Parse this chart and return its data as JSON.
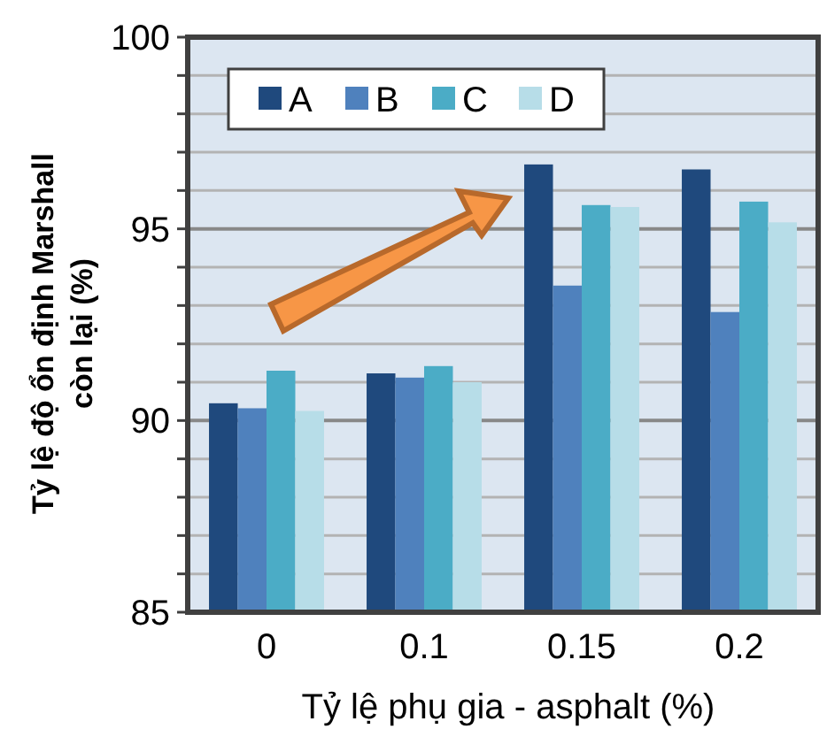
{
  "chart_data": {
    "type": "bar",
    "xlabel": "Tỷ lệ phụ gia - asphalt  (%)",
    "ylabel": "Tỷ lệ độ ổn định Marshall\ncòn lại (%)",
    "categories": [
      "0",
      "0.1",
      "0.15",
      "0.2"
    ],
    "series": [
      {
        "name": "A",
        "color": "#1f497d",
        "values": [
          90.45,
          91.23,
          96.68,
          96.55
        ]
      },
      {
        "name": "B",
        "color": "#4f81bd",
        "values": [
          90.32,
          91.12,
          93.52,
          92.83
        ]
      },
      {
        "name": "C",
        "color": "#4bacc6",
        "values": [
          91.3,
          91.42,
          95.62,
          95.71
        ]
      },
      {
        "name": "D",
        "color": "#b7dde8",
        "values": [
          90.25,
          91.0,
          95.57,
          95.17
        ]
      }
    ],
    "ylim": [
      85,
      100
    ],
    "yticks": [
      85,
      {
        "value": 86,
        "label": null
      },
      {
        "value": 87,
        "label": null
      },
      {
        "value": 88,
        "label": null
      },
      {
        "value": 89,
        "label": null
      },
      90,
      {
        "value": 91,
        "label": null
      },
      {
        "value": 92,
        "label": null
      },
      {
        "value": 93,
        "label": null
      },
      {
        "value": 94,
        "label": null
      },
      95,
      {
        "value": 96,
        "label": null
      },
      {
        "value": 97,
        "label": null
      },
      {
        "value": 98,
        "label": null
      },
      {
        "value": 99,
        "label": null
      },
      100
    ],
    "grid": "y",
    "legend": "top left"
  }
}
